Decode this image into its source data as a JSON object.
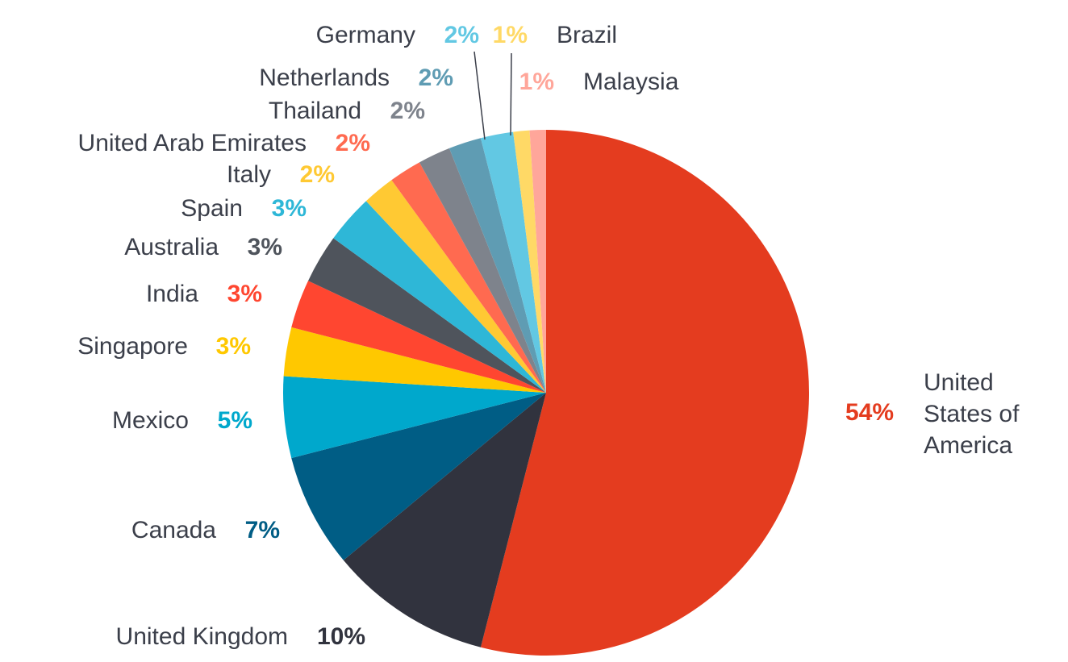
{
  "chart_data": {
    "type": "pie",
    "start_angle_deg": 0,
    "direction": "clockwise",
    "slices": [
      {
        "label": "United States of America",
        "label_lines": [
          "United",
          "States of",
          "America"
        ],
        "value": 54,
        "pct_label": "54%",
        "color": "#e43c1f"
      },
      {
        "label": "United Kingdom",
        "value": 10,
        "pct_label": "10%",
        "color": "#31333e"
      },
      {
        "label": "Canada",
        "value": 7,
        "pct_label": "7%",
        "color": "#005d85"
      },
      {
        "label": "Mexico",
        "value": 5,
        "pct_label": "5%",
        "color": "#00a8cc"
      },
      {
        "label": "Singapore",
        "value": 3,
        "pct_label": "3%",
        "color": "#ffc800"
      },
      {
        "label": "India",
        "value": 3,
        "pct_label": "3%",
        "color": "#ff4630"
      },
      {
        "label": "Australia",
        "value": 3,
        "pct_label": "3%",
        "color": "#4f545c"
      },
      {
        "label": "Spain",
        "value": 3,
        "pct_label": "3%",
        "color": "#2eb7d7"
      },
      {
        "label": "Italy",
        "value": 2,
        "pct_label": "2%",
        "color": "#ffc933"
      },
      {
        "label": "United Arab Emirates",
        "value": 2,
        "pct_label": "2%",
        "color": "#ff6a50"
      },
      {
        "label": "Thailand",
        "value": 2,
        "pct_label": "2%",
        "color": "#7e838c"
      },
      {
        "label": "Netherlands",
        "value": 2,
        "pct_label": "2%",
        "color": "#5f9cb3"
      },
      {
        "label": "Germany",
        "value": 2,
        "pct_label": "2%",
        "color": "#62c8e3"
      },
      {
        "label": "Brazil",
        "value": 1,
        "pct_label": "1%",
        "color": "#ffd966"
      },
      {
        "label": "Malaysia",
        "value": 1,
        "pct_label": "1%",
        "color": "#ffa69a"
      }
    ]
  }
}
